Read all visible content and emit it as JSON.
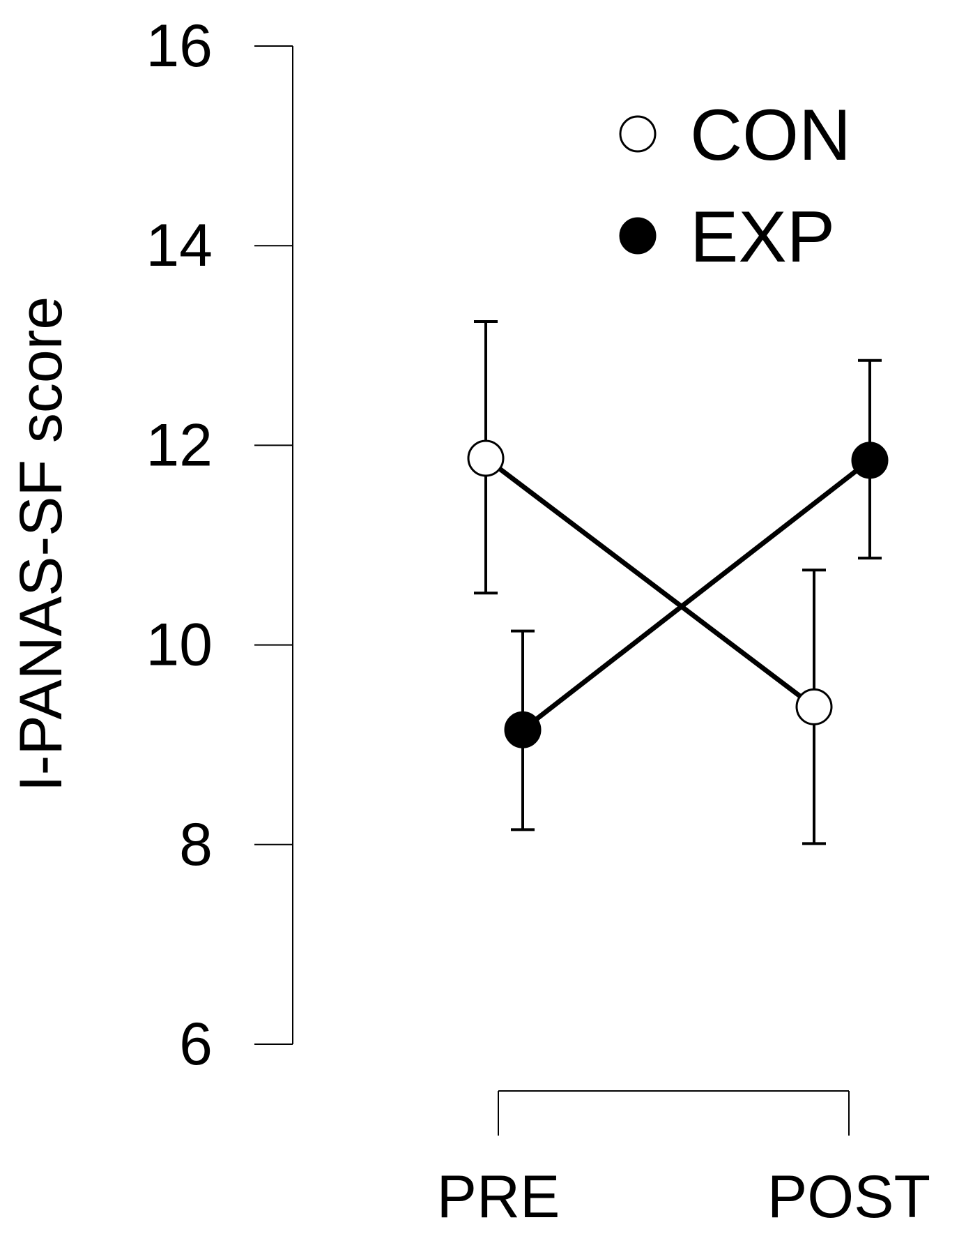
{
  "chart_data": {
    "type": "line",
    "title": "",
    "xlabel": "",
    "ylabel": "I-PANAS-SF score",
    "ylim": [
      6,
      16
    ],
    "yticks": [
      6,
      8,
      10,
      12,
      14,
      16
    ],
    "categories": [
      "PRE",
      "POST"
    ],
    "grid": false,
    "legend": "top-right",
    "series": [
      {
        "name": "CON",
        "marker": "open-circle",
        "values": [
          11.87,
          9.38
        ],
        "err_low": [
          10.52,
          8.01
        ],
        "err_high": [
          13.24,
          10.75
        ]
      },
      {
        "name": "EXP",
        "marker": "filled-circle",
        "values": [
          9.15,
          11.85
        ],
        "err_low": [
          8.15,
          10.87
        ],
        "err_high": [
          10.14,
          12.85
        ]
      }
    ]
  }
}
